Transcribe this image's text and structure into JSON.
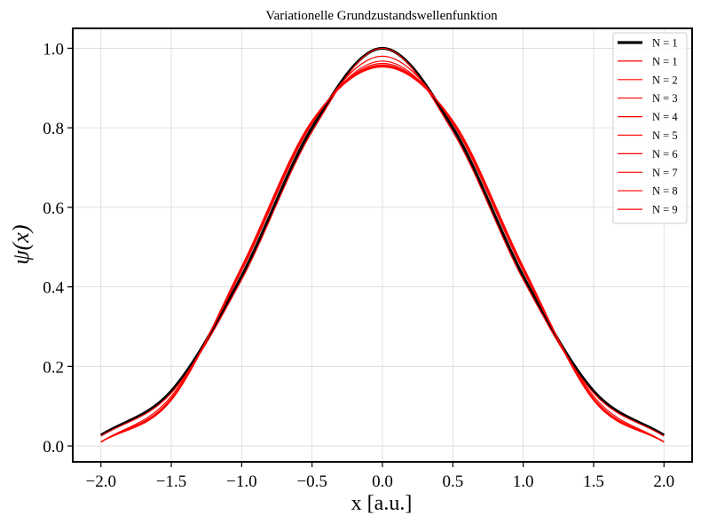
{
  "chart_data": {
    "type": "line",
    "title": "Variationelle Grundzustandswellenfunktion",
    "xlabel": "x [a.u.]",
    "ylabel": "ψ(x)",
    "xlim": [
      -2.2,
      2.2
    ],
    "ylim": [
      -0.04,
      1.05
    ],
    "x_ticks": [
      -2.0,
      -1.5,
      -1.0,
      -0.5,
      0.0,
      0.5,
      1.0,
      1.5,
      2.0
    ],
    "x_tick_labels": [
      "−2.0",
      "−1.5",
      "−1.0",
      "−0.5",
      "0.0",
      "0.5",
      "1.0",
      "1.5",
      "2.0"
    ],
    "y_ticks": [
      0.0,
      0.2,
      0.4,
      0.6,
      0.8,
      1.0
    ],
    "y_tick_labels": [
      "0.0",
      "0.2",
      "0.4",
      "0.6",
      "0.8",
      "1.0"
    ],
    "grid": true,
    "legend_position": "top-right",
    "x": [
      -2.0,
      -1.5,
      -1.0,
      -0.5,
      0.0,
      0.5,
      1.0,
      1.5,
      2.0
    ],
    "series": [
      {
        "name": "N = 1",
        "color": "#000000",
        "style": "thick",
        "values": [
          0.027,
          0.138,
          0.427,
          0.8,
          1.0,
          0.8,
          0.427,
          0.138,
          0.027
        ]
      },
      {
        "name": "N = 1",
        "color": "#ff0000",
        "values": [
          0.025,
          0.133,
          0.418,
          0.79,
          1.0,
          0.79,
          0.418,
          0.133,
          0.025
        ]
      },
      {
        "name": "N = 2",
        "color": "#ff0000",
        "values": [
          0.01,
          0.125,
          0.44,
          0.81,
          0.98,
          0.81,
          0.44,
          0.125,
          0.01
        ]
      },
      {
        "name": "N = 3",
        "color": "#ff0000",
        "values": [
          0.01,
          0.12,
          0.445,
          0.812,
          0.968,
          0.812,
          0.445,
          0.12,
          0.01
        ]
      },
      {
        "name": "N = 4",
        "color": "#ff0000",
        "values": [
          0.01,
          0.118,
          0.447,
          0.814,
          0.962,
          0.814,
          0.447,
          0.118,
          0.01
        ]
      },
      {
        "name": "N = 5",
        "color": "#ff0000",
        "values": [
          0.01,
          0.117,
          0.448,
          0.815,
          0.958,
          0.815,
          0.448,
          0.117,
          0.01
        ]
      },
      {
        "name": "N = 6",
        "color": "#ff0000",
        "values": [
          0.01,
          0.116,
          0.449,
          0.816,
          0.956,
          0.816,
          0.449,
          0.116,
          0.01
        ]
      },
      {
        "name": "N = 7",
        "color": "#ff0000",
        "values": [
          0.01,
          0.116,
          0.45,
          0.817,
          0.955,
          0.817,
          0.45,
          0.116,
          0.01
        ]
      },
      {
        "name": "N = 8",
        "color": "#ff0000",
        "values": [
          0.01,
          0.115,
          0.45,
          0.817,
          0.954,
          0.817,
          0.45,
          0.115,
          0.01
        ]
      },
      {
        "name": "N = 9",
        "color": "#ff0000",
        "values": [
          0.01,
          0.115,
          0.451,
          0.818,
          0.953,
          0.818,
          0.451,
          0.115,
          0.01
        ]
      }
    ]
  }
}
